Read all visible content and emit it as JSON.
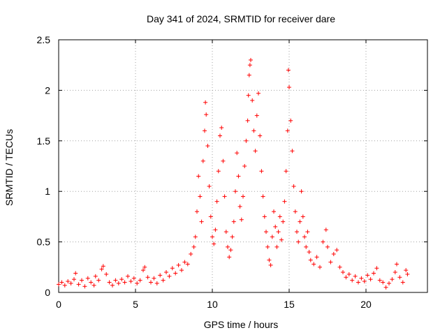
{
  "chart_data": {
    "type": "scatter",
    "title": "Day 341 of 2024, SRMTID for receiver dare",
    "xlabel": "GPS time / hours",
    "ylabel": "SRMTID / TECUs",
    "xlim": [
      0,
      24
    ],
    "ylim": [
      0,
      2.5
    ],
    "grid": true,
    "marker": "+",
    "series_color": "#ff0000",
    "x_ticks": [
      {
        "value": 0,
        "label": "0"
      },
      {
        "value": 5,
        "label": "5"
      },
      {
        "value": 10,
        "label": "10"
      },
      {
        "value": 15,
        "label": "15"
      },
      {
        "value": 20,
        "label": "20"
      }
    ],
    "y_ticks": [
      {
        "value": 0,
        "label": "0"
      },
      {
        "value": 0.5,
        "label": "0.5"
      },
      {
        "value": 1,
        "label": "1"
      },
      {
        "value": 1.5,
        "label": "1.5"
      },
      {
        "value": 2,
        "label": "2"
      },
      {
        "value": 2.5,
        "label": "2.5"
      }
    ],
    "series": [
      {
        "name": "SRMTID",
        "points": [
          [
            0.0,
            0.08
          ],
          [
            0.2,
            0.1
          ],
          [
            0.4,
            0.07
          ],
          [
            0.6,
            0.11
          ],
          [
            0.8,
            0.09
          ],
          [
            1.0,
            0.13
          ],
          [
            1.1,
            0.19
          ],
          [
            1.3,
            0.08
          ],
          [
            1.5,
            0.12
          ],
          [
            1.7,
            0.06
          ],
          [
            1.9,
            0.14
          ],
          [
            2.1,
            0.1
          ],
          [
            2.3,
            0.07
          ],
          [
            2.4,
            0.16
          ],
          [
            2.6,
            0.12
          ],
          [
            2.8,
            0.23
          ],
          [
            2.9,
            0.26
          ],
          [
            3.1,
            0.18
          ],
          [
            3.3,
            0.1
          ],
          [
            3.5,
            0.07
          ],
          [
            3.7,
            0.12
          ],
          [
            3.9,
            0.09
          ],
          [
            4.1,
            0.13
          ],
          [
            4.3,
            0.1
          ],
          [
            4.5,
            0.16
          ],
          [
            4.7,
            0.11
          ],
          [
            4.9,
            0.14
          ],
          [
            5.1,
            0.09
          ],
          [
            5.3,
            0.12
          ],
          [
            5.5,
            0.22
          ],
          [
            5.6,
            0.25
          ],
          [
            5.8,
            0.15
          ],
          [
            6.0,
            0.1
          ],
          [
            6.2,
            0.14
          ],
          [
            6.4,
            0.09
          ],
          [
            6.6,
            0.17
          ],
          [
            6.8,
            0.12
          ],
          [
            7.0,
            0.2
          ],
          [
            7.2,
            0.16
          ],
          [
            7.4,
            0.24
          ],
          [
            7.6,
            0.19
          ],
          [
            7.8,
            0.27
          ],
          [
            8.0,
            0.22
          ],
          [
            8.2,
            0.3
          ],
          [
            8.4,
            0.28
          ],
          [
            8.6,
            0.38
          ],
          [
            8.8,
            0.45
          ],
          [
            8.9,
            0.55
          ],
          [
            9.0,
            0.8
          ],
          [
            9.1,
            1.15
          ],
          [
            9.2,
            0.95
          ],
          [
            9.3,
            0.7
          ],
          [
            9.4,
            1.3
          ],
          [
            9.5,
            1.6
          ],
          [
            9.55,
            1.88
          ],
          [
            9.6,
            1.76
          ],
          [
            9.7,
            1.45
          ],
          [
            9.8,
            1.05
          ],
          [
            9.9,
            0.75
          ],
          [
            10.0,
            0.55
          ],
          [
            10.1,
            0.48
          ],
          [
            10.2,
            0.62
          ],
          [
            10.3,
            0.9
          ],
          [
            10.4,
            1.2
          ],
          [
            10.5,
            1.55
          ],
          [
            10.6,
            1.63
          ],
          [
            10.7,
            1.3
          ],
          [
            10.8,
            0.95
          ],
          [
            10.9,
            0.6
          ],
          [
            11.0,
            0.45
          ],
          [
            11.1,
            0.35
          ],
          [
            11.2,
            0.42
          ],
          [
            11.3,
            0.55
          ],
          [
            11.4,
            0.7
          ],
          [
            11.5,
            1.0
          ],
          [
            11.6,
            1.38
          ],
          [
            11.7,
            1.15
          ],
          [
            11.8,
            0.85
          ],
          [
            11.9,
            0.72
          ],
          [
            12.0,
            0.95
          ],
          [
            12.1,
            1.25
          ],
          [
            12.2,
            1.5
          ],
          [
            12.3,
            1.7
          ],
          [
            12.35,
            1.95
          ],
          [
            12.4,
            2.15
          ],
          [
            12.45,
            2.25
          ],
          [
            12.5,
            2.3
          ],
          [
            12.6,
            1.9
          ],
          [
            12.7,
            1.6
          ],
          [
            12.8,
            1.4
          ],
          [
            12.9,
            1.75
          ],
          [
            13.0,
            1.97
          ],
          [
            13.1,
            1.55
          ],
          [
            13.2,
            1.2
          ],
          [
            13.3,
            0.95
          ],
          [
            13.4,
            0.75
          ],
          [
            13.5,
            0.6
          ],
          [
            13.6,
            0.45
          ],
          [
            13.7,
            0.32
          ],
          [
            13.8,
            0.27
          ],
          [
            13.9,
            0.55
          ],
          [
            14.0,
            0.8
          ],
          [
            14.1,
            0.65
          ],
          [
            14.2,
            0.45
          ],
          [
            14.3,
            0.6
          ],
          [
            14.4,
            0.75
          ],
          [
            14.5,
            0.52
          ],
          [
            14.6,
            0.7
          ],
          [
            14.7,
            0.9
          ],
          [
            14.8,
            1.2
          ],
          [
            14.9,
            1.6
          ],
          [
            14.95,
            2.2
          ],
          [
            15.0,
            2.03
          ],
          [
            15.1,
            1.7
          ],
          [
            15.2,
            1.4
          ],
          [
            15.3,
            1.05
          ],
          [
            15.4,
            0.8
          ],
          [
            15.5,
            0.6
          ],
          [
            15.6,
            0.5
          ],
          [
            15.7,
            0.7
          ],
          [
            15.8,
            1.0
          ],
          [
            15.9,
            0.75
          ],
          [
            16.0,
            0.55
          ],
          [
            16.1,
            0.45
          ],
          [
            16.2,
            0.6
          ],
          [
            16.3,
            0.4
          ],
          [
            16.4,
            0.32
          ],
          [
            16.6,
            0.28
          ],
          [
            16.8,
            0.35
          ],
          [
            17.0,
            0.25
          ],
          [
            17.2,
            0.5
          ],
          [
            17.4,
            0.62
          ],
          [
            17.5,
            0.45
          ],
          [
            17.7,
            0.3
          ],
          [
            17.9,
            0.38
          ],
          [
            18.1,
            0.42
          ],
          [
            18.3,
            0.25
          ],
          [
            18.5,
            0.2
          ],
          [
            18.7,
            0.15
          ],
          [
            18.9,
            0.18
          ],
          [
            19.1,
            0.12
          ],
          [
            19.3,
            0.16
          ],
          [
            19.5,
            0.1
          ],
          [
            19.7,
            0.14
          ],
          [
            19.9,
            0.11
          ],
          [
            20.1,
            0.17
          ],
          [
            20.3,
            0.13
          ],
          [
            20.5,
            0.19
          ],
          [
            20.7,
            0.24
          ],
          [
            20.9,
            0.12
          ],
          [
            21.1,
            0.1
          ],
          [
            21.3,
            0.05
          ],
          [
            21.5,
            0.09
          ],
          [
            21.7,
            0.13
          ],
          [
            21.9,
            0.2
          ],
          [
            22.0,
            0.28
          ],
          [
            22.2,
            0.15
          ],
          [
            22.4,
            0.1
          ],
          [
            22.6,
            0.22
          ],
          [
            22.7,
            0.18
          ]
        ]
      }
    ]
  }
}
